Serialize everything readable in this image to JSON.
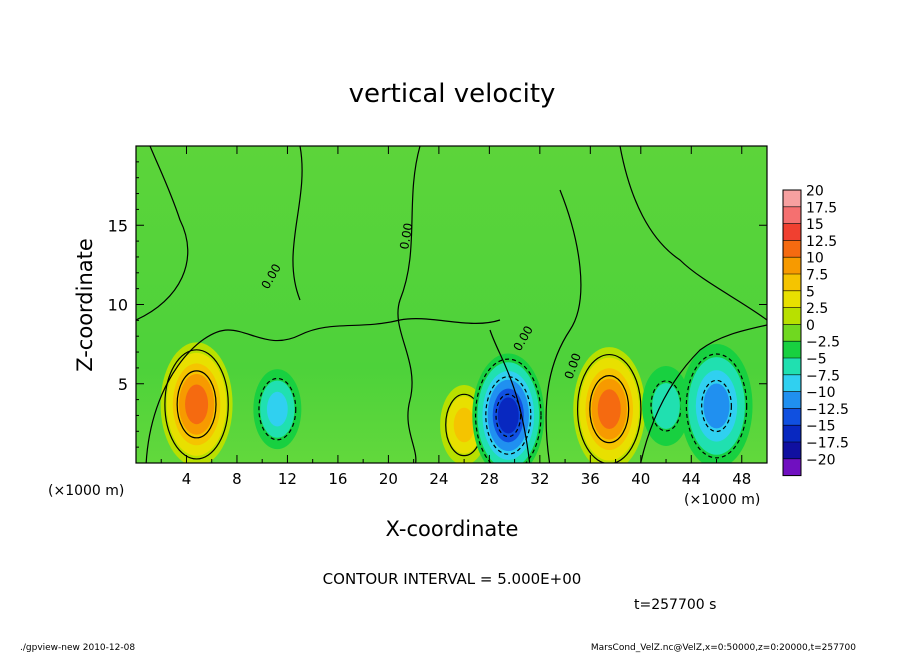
{
  "chart_data": {
    "type": "heatmap",
    "title": "vertical velocity",
    "xlabel": "X-coordinate",
    "ylabel": "Z-coordinate",
    "x_unit_left": "(×1000 m)",
    "x_unit_right": "(×1000 m)",
    "xlim": [
      0,
      50
    ],
    "ylim": [
      0,
      20
    ],
    "x_ticks": [
      4,
      8,
      12,
      16,
      20,
      24,
      28,
      32,
      36,
      40,
      44,
      48
    ],
    "x_tick_labels": [
      "4",
      "8",
      "12",
      "16",
      "20",
      "24",
      "28",
      "32",
      "36",
      "40",
      "44",
      "48"
    ],
    "y_ticks": [
      5,
      10,
      15
    ],
    "y_tick_labels": [
      "5",
      "10",
      "15"
    ],
    "colorbar": {
      "levels": [
        20,
        17.5,
        15,
        12.5,
        10,
        7.5,
        5,
        2.5,
        0,
        -2.5,
        -5,
        -7.5,
        -10,
        -12.5,
        -15,
        -17.5,
        -20
      ],
      "labels": [
        "20",
        "17.5",
        "15",
        "12.5",
        "10",
        "7.5",
        "5",
        "2.5",
        "0",
        "−2.5",
        "−5",
        "−7.5",
        "−10",
        "−12.5",
        "−15",
        "−17.5",
        "−20"
      ],
      "colors": [
        "#f7a0a0",
        "#f57070",
        "#f04030",
        "#f56a10",
        "#f79a00",
        "#f5c400",
        "#e8e000",
        "#b8e000",
        "#70d820",
        "#18d040",
        "#20e0b0",
        "#30d0f0",
        "#2090f0",
        "#1050e0",
        "#0828c0",
        "#1010a0",
        "#7010c0"
      ]
    },
    "features": [
      {
        "kind": "updraft",
        "x": 4.8,
        "z": 3.7,
        "peak": 12.5
      },
      {
        "kind": "downdraft",
        "x": 11.2,
        "z": 3.4,
        "peak": -7.5
      },
      {
        "kind": "updraft",
        "x": 26,
        "z": 2.4,
        "peak": 7.5
      },
      {
        "kind": "downdraft",
        "x": 29.5,
        "z": 3.0,
        "peak": -15
      },
      {
        "kind": "updraft",
        "x": 37.5,
        "z": 3.4,
        "peak": 12.5
      },
      {
        "kind": "downdraft",
        "x": 42,
        "z": 3.6,
        "peak": -5
      },
      {
        "kind": "downdraft",
        "x": 46,
        "z": 3.6,
        "peak": -10
      }
    ],
    "contour_labels": [
      "0.00",
      "0.00",
      "0.00",
      "0.00"
    ],
    "contour_interval_text": "CONTOUR INTERVAL = 5.000E+00",
    "time_text": "t=257700 s"
  },
  "footer": {
    "left": "./gpview-new  2010-12-08",
    "right": "MarsCond_VelZ.nc@VelZ,x=0:50000,z=0:20000,t=257700"
  }
}
